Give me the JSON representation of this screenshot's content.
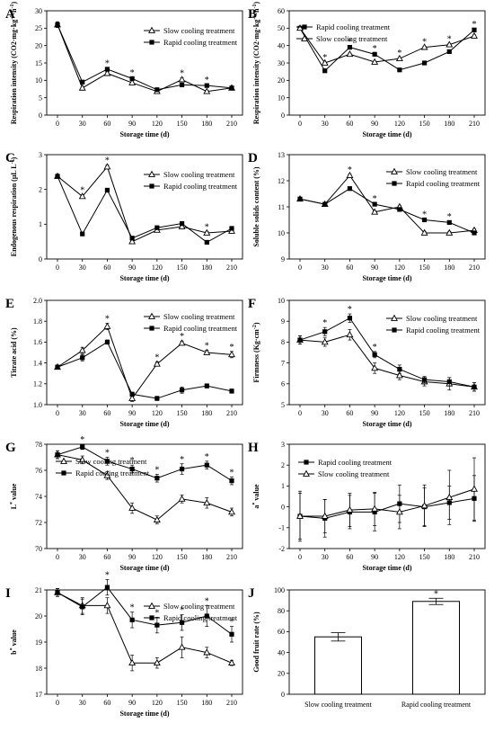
{
  "chart_data": [
    {
      "id": "A",
      "panel_label": "A",
      "type": "line",
      "ylabel": "Respiration intensity (CO2·mg·kg-1·h-1)",
      "xlabel": "Storage time (d)",
      "ylim": [
        0,
        30
      ],
      "yticks": [
        0,
        5,
        10,
        15,
        20,
        25,
        30
      ],
      "x": [
        0,
        30,
        60,
        90,
        120,
        150,
        180,
        210
      ],
      "xticks": [
        0,
        30,
        60,
        90,
        120,
        150,
        180,
        210
      ],
      "legend_pos": "top-right",
      "series": [
        {
          "name": "Slow cooling treatment",
          "marker": "triangle",
          "values": [
            26,
            7.8,
            12,
            9.3,
            6.8,
            10.2,
            6.8,
            7.8
          ],
          "err": [
            0.8,
            0.3,
            0.4,
            0.3,
            0.3,
            0.5,
            0.3,
            0.3
          ]
        },
        {
          "name": "Rapid cooling treatment",
          "marker": "square",
          "values": [
            26,
            9.5,
            13.2,
            10.5,
            7.3,
            8.7,
            8.5,
            7.8
          ],
          "err": [
            0.8,
            0.3,
            0.4,
            0.3,
            0.3,
            0.3,
            0.3,
            0.3
          ]
        }
      ],
      "stars": [
        60,
        90,
        150,
        180
      ]
    },
    {
      "id": "B",
      "panel_label": "B",
      "type": "line",
      "ylabel": "Respiration intensity (CO2·mg·kg-1·h-1)",
      "xlabel": "Storage time (d)",
      "ylim": [
        0,
        60
      ],
      "yticks": [
        0,
        10,
        20,
        30,
        40,
        50,
        60
      ],
      "x": [
        0,
        30,
        60,
        90,
        120,
        150,
        180,
        210
      ],
      "xticks": [
        0,
        30,
        60,
        90,
        120,
        150,
        180,
        210
      ],
      "legend_pos": "top-left",
      "series": [
        {
          "name": "Rapid cooling treatment",
          "marker": "square",
          "values": [
            50,
            25.5,
            39,
            35,
            26,
            30,
            36.5,
            49
          ],
          "err": [
            0.6,
            0.6,
            0.6,
            0.6,
            0.6,
            0.6,
            0.6,
            0.6
          ]
        },
        {
          "name": "Slow cooling treatment",
          "marker": "triangle",
          "values": [
            50,
            30,
            35,
            30.5,
            32.5,
            39,
            40.5,
            45.5
          ],
          "err": [
            0.6,
            0.6,
            0.6,
            0.6,
            0.6,
            0.6,
            0.6,
            0.6
          ]
        }
      ],
      "stars": [
        30,
        60,
        90,
        120,
        150,
        180,
        210
      ]
    },
    {
      "id": "C",
      "panel_label": "C",
      "type": "line",
      "ylabel": "Endogenous respiration (μL L-1)",
      "xlabel": "Storage time (d)",
      "ylim": [
        0,
        3
      ],
      "yticks": [
        0,
        1,
        2,
        3
      ],
      "x": [
        0,
        30,
        60,
        90,
        120,
        150,
        180,
        210
      ],
      "xticks": [
        0,
        30,
        60,
        90,
        120,
        150,
        180,
        210
      ],
      "legend_pos": "top-right",
      "series": [
        {
          "name": "Slow cooling treatment",
          "marker": "triangle",
          "values": [
            2.38,
            1.8,
            2.65,
            0.5,
            0.83,
            0.93,
            0.75,
            0.8
          ],
          "err": [
            0.04,
            0.05,
            0.05,
            0.04,
            0.04,
            0.04,
            0.04,
            0.04
          ]
        },
        {
          "name": "Rapid cooling treatment",
          "marker": "square",
          "values": [
            2.38,
            0.72,
            1.98,
            0.6,
            0.9,
            1.02,
            0.48,
            0.88
          ],
          "err": [
            0.04,
            0.05,
            0.04,
            0.04,
            0.04,
            0.04,
            0.04,
            0.04
          ]
        }
      ],
      "stars": [
        30,
        60,
        180
      ]
    },
    {
      "id": "D",
      "panel_label": "D",
      "type": "line",
      "ylabel": "Soluble solids content (%)",
      "xlabel": "Storage time (d)",
      "ylim": [
        9,
        13
      ],
      "yticks": [
        9,
        10,
        11,
        12,
        13
      ],
      "x": [
        0,
        30,
        60,
        90,
        120,
        150,
        180,
        210
      ],
      "xticks": [
        0,
        30,
        60,
        90,
        120,
        150,
        180,
        210
      ],
      "legend_pos": "top-right",
      "series": [
        {
          "name": "Slow cooling treatment",
          "marker": "triangle",
          "values": [
            11.3,
            11.1,
            12.2,
            10.8,
            11.0,
            10.0,
            10.0,
            10.1
          ],
          "err": [
            0.04,
            0.04,
            0.05,
            0.05,
            0.05,
            0.05,
            0.05,
            0.05
          ]
        },
        {
          "name": "Rapid cooling treatment",
          "marker": "square",
          "values": [
            11.3,
            11.1,
            11.7,
            11.1,
            10.9,
            10.5,
            10.4,
            10.0
          ],
          "err": [
            0.04,
            0.04,
            0.04,
            0.04,
            0.04,
            0.04,
            0.04,
            0.04
          ]
        }
      ],
      "stars": [
        60,
        90,
        150,
        180
      ]
    },
    {
      "id": "E",
      "panel_label": "E",
      "type": "line",
      "ylabel": "Titrate acid (%)",
      "xlabel": "Storage time (d)",
      "ylim": [
        1.0,
        2.0
      ],
      "yticks": [
        1.0,
        1.2,
        1.4,
        1.6,
        1.8,
        2.0
      ],
      "x": [
        0,
        30,
        60,
        90,
        120,
        150,
        180,
        210
      ],
      "xticks": [
        0,
        30,
        60,
        90,
        120,
        150,
        180,
        210
      ],
      "legend_pos": "top-right",
      "series": [
        {
          "name": "Slow cooling treatment",
          "marker": "triangle",
          "values": [
            1.36,
            1.52,
            1.75,
            1.06,
            1.39,
            1.59,
            1.5,
            1.48
          ],
          "err": [
            0.02,
            0.03,
            0.03,
            0.03,
            0.02,
            0.02,
            0.02,
            0.03
          ]
        },
        {
          "name": "Rapid cooling treatment",
          "marker": "square",
          "values": [
            1.36,
            1.45,
            1.6,
            1.1,
            1.06,
            1.14,
            1.18,
            1.13
          ],
          "err": [
            0.02,
            0.03,
            0.02,
            0.02,
            0.02,
            0.03,
            0.02,
            0.02
          ]
        }
      ],
      "stars": [
        60,
        120,
        150,
        180,
        210
      ]
    },
    {
      "id": "F",
      "panel_label": "F",
      "type": "line",
      "ylabel": "Firmness (Kg·cm-2)",
      "xlabel": "Storage time (d)",
      "ylim": [
        5,
        10
      ],
      "yticks": [
        5,
        6,
        7,
        8,
        9,
        10
      ],
      "x": [
        0,
        30,
        60,
        90,
        120,
        150,
        180,
        210
      ],
      "xticks": [
        0,
        30,
        60,
        90,
        120,
        150,
        180,
        210
      ],
      "legend_pos": "top-right",
      "series": [
        {
          "name": "Slow cooling treatment",
          "marker": "triangle",
          "values": [
            8.1,
            8.0,
            8.35,
            6.75,
            6.4,
            6.1,
            6.0,
            5.85
          ],
          "err": [
            0.2,
            0.2,
            0.25,
            0.25,
            0.2,
            0.2,
            0.3,
            0.2
          ]
        },
        {
          "name": "Rapid cooling treatment",
          "marker": "square",
          "values": [
            8.1,
            8.5,
            9.15,
            7.4,
            6.7,
            6.2,
            6.1,
            5.85
          ],
          "err": [
            0.2,
            0.2,
            0.2,
            0.15,
            0.2,
            0.15,
            0.2,
            0.2
          ]
        }
      ],
      "stars": [
        30,
        60,
        90
      ]
    },
    {
      "id": "G",
      "panel_label": "G",
      "type": "line",
      "ylabel": "L* value",
      "xlabel": "Storage time (d)",
      "ylim": [
        70,
        78
      ],
      "yticks": [
        70,
        72,
        74,
        76,
        78
      ],
      "x": [
        0,
        30,
        60,
        90,
        120,
        150,
        180,
        210
      ],
      "xticks": [
        0,
        30,
        60,
        90,
        120,
        150,
        180,
        210
      ],
      "legend_pos": "top",
      "series": [
        {
          "name": "Slow cooling treatment",
          "marker": "triangle",
          "values": [
            77.2,
            76.8,
            75.6,
            73.1,
            72.2,
            73.8,
            73.5,
            72.8
          ],
          "err": [
            0.3,
            0.3,
            0.3,
            0.4,
            0.3,
            0.3,
            0.4,
            0.3
          ]
        },
        {
          "name": "Rapid cooling treatment",
          "marker": "square",
          "values": [
            77.2,
            77.8,
            76.7,
            76.1,
            75.4,
            76.1,
            76.4,
            75.2
          ],
          "err": [
            0.3,
            0.2,
            0.3,
            0.3,
            0.3,
            0.4,
            0.3,
            0.3
          ]
        }
      ],
      "stars": [
        30,
        60,
        90,
        120,
        150,
        180,
        210
      ]
    },
    {
      "id": "H",
      "panel_label": "H",
      "type": "line",
      "ylabel": "a* value",
      "xlabel": "Storage time (d)",
      "ylim": [
        -2,
        3
      ],
      "yticks": [
        -2,
        -1,
        0,
        1,
        2,
        3
      ],
      "x": [
        0,
        30,
        60,
        90,
        120,
        150,
        180,
        210
      ],
      "xticks": [
        0,
        30,
        60,
        90,
        120,
        150,
        180,
        210
      ],
      "legend_pos": "top-left",
      "series": [
        {
          "name": "Rapid cooling treatment",
          "marker": "square",
          "values": [
            -0.45,
            -0.55,
            -0.25,
            -0.25,
            0.15,
            0.0,
            0.2,
            0.4
          ],
          "err": [
            1.1,
            0.9,
            0.8,
            0.9,
            0.9,
            0.9,
            0.8,
            1.1
          ]
        },
        {
          "name": "Slow cooling treatment",
          "marker": "triangle",
          "values": [
            -0.45,
            -0.45,
            -0.15,
            -0.1,
            -0.25,
            0.05,
            0.45,
            0.85
          ],
          "err": [
            1.2,
            0.8,
            0.8,
            0.8,
            0.8,
            1.0,
            1.3,
            1.5
          ]
        }
      ],
      "stars": []
    },
    {
      "id": "I",
      "panel_label": "I",
      "type": "line",
      "ylabel": "b* value",
      "xlabel": "Storage time (d)",
      "ylim": [
        17,
        21
      ],
      "yticks": [
        17,
        18,
        19,
        20,
        21
      ],
      "x": [
        0,
        30,
        60,
        90,
        120,
        150,
        180,
        210
      ],
      "xticks": [
        0,
        30,
        60,
        90,
        120,
        150,
        180,
        210
      ],
      "legend_pos": "top-right",
      "series": [
        {
          "name": "Slow cooling treatment",
          "marker": "triangle",
          "values": [
            20.9,
            20.4,
            20.4,
            18.2,
            18.2,
            18.8,
            18.6,
            18.2
          ],
          "err": [
            0.15,
            0.3,
            0.3,
            0.3,
            0.2,
            0.4,
            0.2,
            0.1
          ]
        },
        {
          "name": "Rapid cooling treatment",
          "marker": "square",
          "values": [
            20.9,
            20.35,
            21.1,
            19.85,
            19.65,
            19.75,
            20.0,
            19.3
          ],
          "err": [
            0.15,
            0.3,
            0.3,
            0.3,
            0.3,
            0.3,
            0.4,
            0.3
          ]
        }
      ],
      "stars": [
        60,
        90,
        120,
        150,
        180,
        210
      ]
    },
    {
      "id": "J",
      "panel_label": "J",
      "type": "bar",
      "ylabel": "Good fruit rate (%)",
      "xlabel": "",
      "ylim": [
        0,
        100
      ],
      "yticks": [
        0,
        20,
        40,
        60,
        80,
        100
      ],
      "categories": [
        "Slow cooling treatment",
        "Rapid cooling treatment"
      ],
      "values": [
        55,
        89
      ],
      "err": [
        4,
        3
      ],
      "stars": [
        1
      ]
    }
  ]
}
